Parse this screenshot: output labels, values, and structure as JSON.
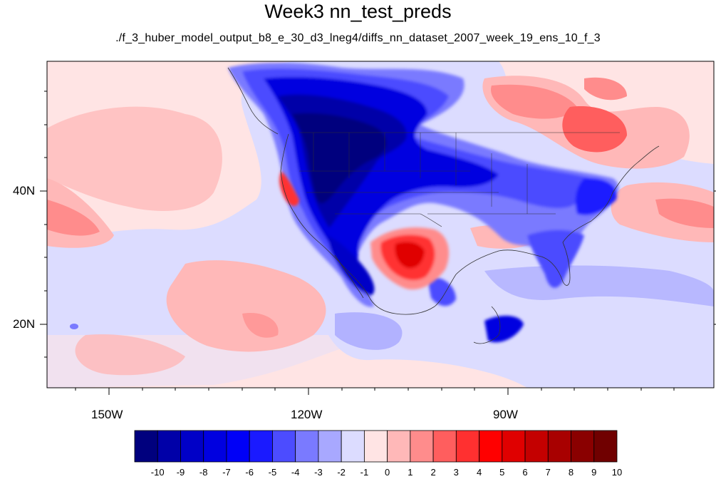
{
  "title": "Week3 nn_test_preds",
  "subtitle": "./f_3_huber_model_output_b8_e_30_d3_lneg4/diffs_nn_dataset_2007_week_19_ens_10_f_3",
  "lat_labels": [
    "40N",
    "20N"
  ],
  "lon_labels": [
    "150W",
    "120W",
    "90W"
  ],
  "colorbar": {
    "labels": [
      "-10",
      "-9",
      "-8",
      "-7",
      "-6",
      "-5",
      "-4",
      "-3",
      "-2",
      "-1",
      "0",
      "1",
      "2",
      "3",
      "4",
      "5",
      "6",
      "7",
      "8",
      "9",
      "10"
    ],
    "colors": [
      "#00007e",
      "#0000a8",
      "#0000c7",
      "#0000e0",
      "#0000f7",
      "#1a1aff",
      "#4c4cff",
      "#7a7aff",
      "#a8a8ff",
      "#dcdcff",
      "#ffe4e4",
      "#ffb8b8",
      "#ff8c8c",
      "#ff5e5e",
      "#ff3030",
      "#ff0000",
      "#e00000",
      "#c40000",
      "#a80000",
      "#8a0000",
      "#700000"
    ]
  }
}
